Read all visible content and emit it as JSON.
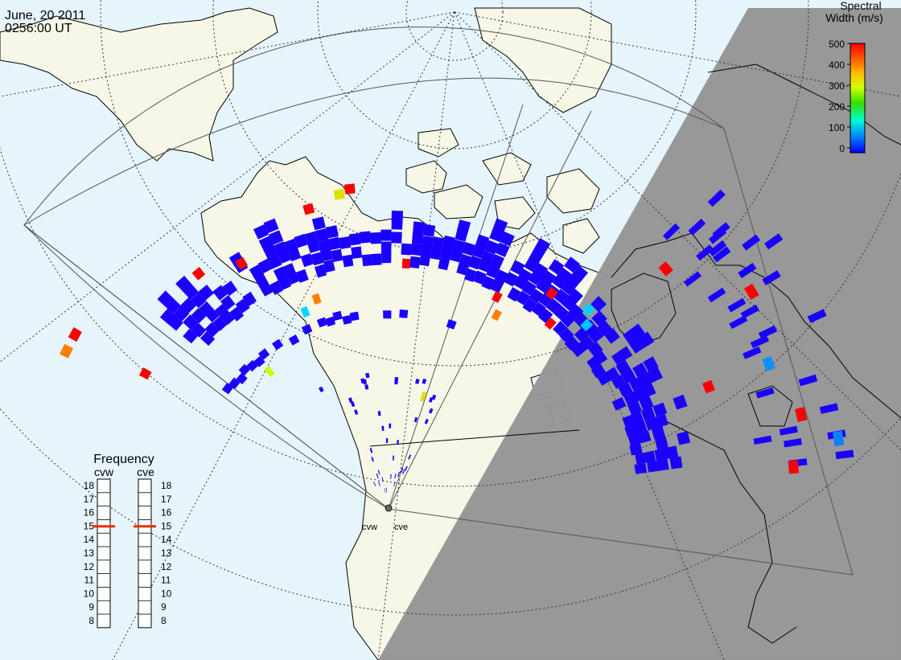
{
  "header": {
    "date": "June, 20 2011",
    "time": "0256:00 UT"
  },
  "colorbar": {
    "title_line1": "Spectral",
    "title_line2": "Width (m/s)",
    "ticks": [
      "500",
      "400",
      "300",
      "200",
      "100",
      "0"
    ],
    "colors": [
      "#0000ff",
      "#00a0ff",
      "#00ffd0",
      "#30e000",
      "#d0ff00",
      "#ffc000",
      "#ff6000",
      "#ff0000"
    ]
  },
  "frequency_panel": {
    "title": "Frequency",
    "radar_left": "cvw",
    "radar_right": "cve",
    "scale": [
      "18",
      "17",
      "16",
      "15",
      "14",
      "13",
      "12",
      "11",
      "10",
      "9",
      "8"
    ],
    "left_value_mhz": 15,
    "right_value_mhz": 15
  },
  "radars": {
    "left_label": "cvw",
    "right_label": "cve"
  },
  "map": {
    "land_color": "#f7f7e8",
    "ocean_color": "#e6f5fc",
    "night_color": "#969696",
    "coast_color": "#000000"
  }
}
